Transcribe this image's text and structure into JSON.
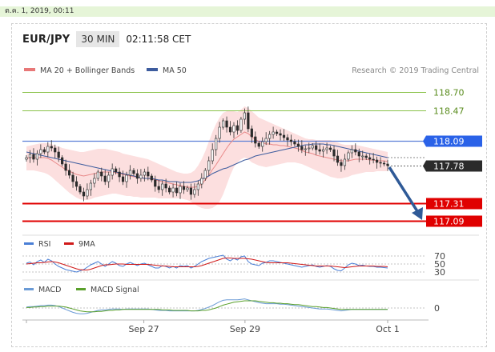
{
  "date_bar": "ต.ค. 1, 2019, 00:11",
  "header": {
    "pair": "EUR/JPY",
    "timeframe": "30 MIN",
    "clock": "02:11:58 CET"
  },
  "legend": {
    "bb_label": "MA 20 + Bollinger Bands",
    "ma50_label": "MA 50",
    "credit": "Research © 2019 Trading Central"
  },
  "colors": {
    "bb": "#e87878",
    "ma50": "#3d5c9e",
    "green": "#8ac24a",
    "red": "#e00000",
    "blue": "#2a62e8",
    "rsi": "#4a7fd6",
    "nine_ma": "#d01a1a",
    "macd": "#6b9bd6",
    "macd_signal": "#5aa02c"
  },
  "chart_data": [
    {
      "type": "line",
      "panel": "price",
      "x_labels": [
        "Sep 27",
        "Sep 29",
        "Oct 1"
      ],
      "ylim": [
        116.95,
        118.85
      ],
      "close": [
        117.88,
        117.92,
        117.86,
        117.93,
        117.98,
        117.95,
        118.02,
        118.0,
        117.95,
        117.88,
        117.8,
        117.72,
        117.66,
        117.58,
        117.52,
        117.45,
        117.4,
        117.48,
        117.56,
        117.62,
        117.7,
        117.65,
        117.58,
        117.66,
        117.74,
        117.7,
        117.64,
        117.58,
        117.66,
        117.72,
        117.68,
        117.62,
        117.66,
        117.7,
        117.65,
        117.6,
        117.52,
        117.48,
        117.55,
        117.5,
        117.45,
        117.5,
        117.44,
        117.52,
        117.48,
        117.5,
        117.42,
        117.48,
        117.55,
        117.62,
        117.72,
        117.84,
        117.98,
        118.12,
        118.26,
        118.34,
        118.26,
        118.2,
        118.28,
        118.22,
        118.36,
        118.44,
        118.24,
        118.14,
        118.06,
        118.02,
        118.08,
        118.12,
        118.17,
        118.2,
        118.18,
        118.16,
        118.13,
        118.1,
        118.08,
        118.05,
        118.02,
        117.98,
        117.99,
        118.0,
        118.03,
        117.98,
        117.96,
        117.98,
        118.0,
        117.98,
        117.9,
        117.82,
        117.78,
        117.86,
        117.94,
        117.98,
        117.95,
        117.9,
        117.9,
        117.88,
        117.86,
        117.85,
        117.82,
        117.81,
        117.8,
        117.78
      ],
      "bb_upper": [
        118.02,
        118.03,
        118.04,
        118.05,
        118.06,
        118.06,
        118.06,
        118.05,
        118.03,
        118.02,
        118.0,
        117.99,
        117.98,
        117.97,
        117.96,
        117.95,
        117.95,
        117.96,
        117.97,
        117.98,
        117.99,
        117.99,
        117.99,
        117.98,
        117.97,
        117.96,
        117.95,
        117.93,
        117.92,
        117.91,
        117.9,
        117.89,
        117.88,
        117.87,
        117.86,
        117.84,
        117.82,
        117.8,
        117.78,
        117.76,
        117.74,
        117.72,
        117.7,
        117.69,
        117.68,
        117.68,
        117.69,
        117.72,
        117.78,
        117.86,
        117.96,
        118.08,
        118.2,
        118.3,
        118.38,
        118.44,
        118.46,
        118.46,
        118.46,
        118.45,
        118.48,
        118.52,
        118.5,
        118.46,
        118.42,
        118.38,
        118.36,
        118.34,
        118.32,
        118.3,
        118.28,
        118.26,
        118.24,
        118.22,
        118.2,
        118.18,
        118.16,
        118.14,
        118.12,
        118.11,
        118.11,
        118.1,
        118.1,
        118.1,
        118.1,
        118.1,
        118.08,
        118.07,
        118.05,
        118.04,
        118.04,
        118.04,
        118.04,
        118.03,
        118.02,
        118.01,
        118.0,
        117.99,
        117.98,
        117.97,
        117.96,
        117.95
      ],
      "bb_lower": [
        117.72,
        117.72,
        117.72,
        117.71,
        117.7,
        117.69,
        117.67,
        117.64,
        117.6,
        117.56,
        117.52,
        117.48,
        117.44,
        117.41,
        117.38,
        117.36,
        117.35,
        117.35,
        117.36,
        117.38,
        117.39,
        117.4,
        117.41,
        117.42,
        117.43,
        117.43,
        117.42,
        117.41,
        117.4,
        117.4,
        117.39,
        117.39,
        117.38,
        117.38,
        117.38,
        117.38,
        117.38,
        117.37,
        117.37,
        117.37,
        117.37,
        117.37,
        117.37,
        117.37,
        117.36,
        117.35,
        117.33,
        117.3,
        117.27,
        117.25,
        117.24,
        117.24,
        117.25,
        117.28,
        117.33,
        117.42,
        117.54,
        117.66,
        117.76,
        117.82,
        117.86,
        117.88,
        117.86,
        117.82,
        117.8,
        117.78,
        117.77,
        117.76,
        117.77,
        117.78,
        117.79,
        117.8,
        117.81,
        117.82,
        117.82,
        117.82,
        117.81,
        117.8,
        117.78,
        117.76,
        117.74,
        117.72,
        117.7,
        117.68,
        117.66,
        117.64,
        117.63,
        117.62,
        117.62,
        117.63,
        117.64,
        117.66,
        117.67,
        117.68,
        117.69,
        117.7,
        117.7,
        117.7,
        117.71,
        117.71,
        117.71,
        117.71
      ],
      "ma20": [
        117.87,
        117.88,
        117.88,
        117.88,
        117.88,
        117.88,
        117.87,
        117.85,
        117.82,
        117.79,
        117.76,
        117.73,
        117.71,
        117.69,
        117.67,
        117.66,
        117.65,
        117.66,
        117.67,
        117.68,
        117.69,
        117.7,
        117.7,
        117.7,
        117.7,
        117.69,
        117.68,
        117.67,
        117.66,
        117.65,
        117.64,
        117.64,
        117.63,
        117.62,
        117.62,
        117.61,
        117.6,
        117.59,
        117.58,
        117.57,
        117.56,
        117.55,
        117.54,
        117.53,
        117.52,
        117.51,
        117.51,
        117.51,
        117.52,
        117.55,
        117.6,
        117.66,
        117.73,
        117.79,
        117.86,
        117.93,
        118.0,
        118.06,
        118.11,
        118.14,
        118.17,
        118.2,
        118.18,
        118.14,
        118.11,
        118.08,
        118.07,
        118.05,
        118.05,
        118.04,
        118.04,
        118.03,
        118.03,
        118.02,
        118.01,
        118.0,
        117.99,
        117.97,
        117.95,
        117.94,
        117.93,
        117.91,
        117.9,
        117.89,
        117.88,
        117.87,
        117.86,
        117.85,
        117.84,
        117.84,
        117.84,
        117.85,
        117.86,
        117.86,
        117.86,
        117.86,
        117.85,
        117.85,
        117.84,
        117.84,
        117.84,
        117.83
      ],
      "ma50": [
        117.95,
        117.94,
        117.93,
        117.92,
        117.91,
        117.9,
        117.89,
        117.88,
        117.87,
        117.86,
        117.85,
        117.84,
        117.83,
        117.82,
        117.81,
        117.8,
        117.79,
        117.78,
        117.77,
        117.76,
        117.75,
        117.74,
        117.73,
        117.72,
        117.71,
        117.7,
        117.69,
        117.68,
        117.67,
        117.66,
        117.65,
        117.64,
        117.63,
        117.62,
        117.62,
        117.62,
        117.61,
        117.6,
        117.6,
        117.59,
        117.58,
        117.58,
        117.58,
        117.57,
        117.57,
        117.57,
        117.57,
        117.58,
        117.59,
        117.61,
        117.63,
        117.65,
        117.68,
        117.7,
        117.72,
        117.74,
        117.75,
        117.77,
        117.79,
        117.81,
        117.83,
        117.85,
        117.86,
        117.88,
        117.9,
        117.91,
        117.92,
        117.93,
        117.94,
        117.95,
        117.96,
        117.97,
        117.98,
        117.99,
        118.0,
        118.01,
        118.02,
        118.03,
        118.04,
        118.04,
        118.05,
        118.05,
        118.05,
        118.05,
        118.04,
        118.04,
        118.03,
        118.02,
        118.01,
        118.0,
        117.99,
        117.98,
        117.97,
        117.96,
        117.95,
        117.94,
        117.93,
        117.92,
        117.91,
        117.9,
        117.89,
        117.88
      ],
      "levels": [
        {
          "value": 118.7,
          "label": "118.70",
          "kind": "green"
        },
        {
          "value": 118.47,
          "label": "118.47",
          "kind": "green"
        },
        {
          "value": 118.09,
          "label": "118.09",
          "kind": "blue"
        },
        {
          "value": 117.78,
          "label": "117.78",
          "kind": "current"
        },
        {
          "value": 117.31,
          "label": "117.31",
          "kind": "red"
        },
        {
          "value": 117.09,
          "label": "117.09",
          "kind": "red"
        }
      ],
      "forecast_arrow": {
        "from": 117.78,
        "to": 117.09
      }
    },
    {
      "type": "line",
      "panel": "rsi",
      "legend": [
        "RSI",
        "9MA"
      ],
      "levels": [
        70,
        50,
        30
      ],
      "ylim": [
        20,
        80
      ],
      "rsi": [
        52,
        55,
        48,
        56,
        60,
        54,
        62,
        58,
        50,
        44,
        40,
        36,
        34,
        32,
        30,
        33,
        36,
        42,
        48,
        52,
        56,
        50,
        44,
        50,
        56,
        52,
        46,
        44,
        50,
        54,
        50,
        46,
        50,
        52,
        48,
        44,
        40,
        40,
        46,
        44,
        40,
        44,
        40,
        46,
        44,
        46,
        40,
        44,
        50,
        56,
        60,
        64,
        66,
        68,
        70,
        72,
        62,
        58,
        64,
        60,
        68,
        70,
        56,
        50,
        48,
        46,
        52,
        54,
        58,
        58,
        56,
        54,
        52,
        50,
        48,
        46,
        44,
        42,
        44,
        46,
        48,
        44,
        42,
        44,
        46,
        44,
        38,
        34,
        33,
        40,
        48,
        52,
        50,
        46,
        47,
        45,
        44,
        44,
        42,
        42,
        41,
        40
      ],
      "nine_ma": [
        50,
        51,
        52,
        53,
        53,
        54,
        55,
        56,
        55,
        53,
        50,
        47,
        44,
        41,
        38,
        36,
        35,
        35,
        37,
        40,
        43,
        46,
        48,
        48,
        49,
        50,
        50,
        50,
        49,
        49,
        49,
        49,
        49,
        49,
        49,
        48,
        47,
        46,
        45,
        45,
        44,
        43,
        43,
        43,
        43,
        43,
        43,
        43,
        44,
        46,
        49,
        52,
        55,
        58,
        61,
        64,
        65,
        65,
        64,
        64,
        64,
        64,
        63,
        62,
        60,
        58,
        56,
        54,
        53,
        53,
        53,
        53,
        53,
        53,
        52,
        51,
        50,
        49,
        48,
        47,
        46,
        45,
        45,
        45,
        45,
        45,
        44,
        43,
        42,
        41,
        42,
        43,
        44,
        45,
        45,
        45,
        45,
        45,
        44,
        44,
        44,
        43
      ]
    },
    {
      "type": "line",
      "panel": "macd",
      "legend": [
        "MACD",
        "MACD Signal"
      ],
      "zero_label": "0",
      "ylim": [
        -0.25,
        0.25
      ],
      "macd": [
        0.02,
        0.03,
        0.03,
        0.04,
        0.05,
        0.05,
        0.06,
        0.06,
        0.05,
        0.03,
        0.0,
        -0.03,
        -0.06,
        -0.09,
        -0.11,
        -0.12,
        -0.12,
        -0.11,
        -0.09,
        -0.07,
        -0.05,
        -0.04,
        -0.04,
        -0.03,
        -0.02,
        -0.02,
        -0.02,
        -0.03,
        -0.02,
        -0.02,
        -0.02,
        -0.02,
        -0.02,
        -0.02,
        -0.02,
        -0.03,
        -0.04,
        -0.05,
        -0.05,
        -0.05,
        -0.06,
        -0.06,
        -0.06,
        -0.06,
        -0.06,
        -0.06,
        -0.06,
        -0.06,
        -0.05,
        -0.03,
        -0.01,
        0.02,
        0.05,
        0.09,
        0.13,
        0.16,
        0.17,
        0.17,
        0.17,
        0.17,
        0.18,
        0.19,
        0.17,
        0.15,
        0.13,
        0.11,
        0.1,
        0.09,
        0.09,
        0.09,
        0.09,
        0.08,
        0.08,
        0.07,
        0.06,
        0.05,
        0.04,
        0.03,
        0.02,
        0.01,
        0.0,
        -0.01,
        -0.02,
        -0.02,
        -0.02,
        -0.03,
        -0.04,
        -0.05,
        -0.06,
        -0.05,
        -0.04,
        -0.03,
        -0.03,
        -0.03,
        -0.03,
        -0.03,
        -0.03,
        -0.03,
        -0.03,
        -0.03,
        -0.03,
        -0.03
      ],
      "signal": [
        0.01,
        0.01,
        0.02,
        0.02,
        0.03,
        0.03,
        0.04,
        0.04,
        0.04,
        0.04,
        0.03,
        0.02,
        0.0,
        -0.02,
        -0.04,
        -0.06,
        -0.07,
        -0.08,
        -0.08,
        -0.08,
        -0.07,
        -0.07,
        -0.06,
        -0.05,
        -0.05,
        -0.04,
        -0.04,
        -0.03,
        -0.03,
        -0.03,
        -0.03,
        -0.03,
        -0.03,
        -0.03,
        -0.03,
        -0.03,
        -0.03,
        -0.03,
        -0.04,
        -0.04,
        -0.04,
        -0.05,
        -0.05,
        -0.05,
        -0.05,
        -0.05,
        -0.06,
        -0.06,
        -0.06,
        -0.05,
        -0.05,
        -0.04,
        -0.02,
        0.0,
        0.03,
        0.06,
        0.08,
        0.1,
        0.12,
        0.13,
        0.14,
        0.15,
        0.15,
        0.15,
        0.15,
        0.14,
        0.13,
        0.12,
        0.11,
        0.11,
        0.1,
        0.1,
        0.09,
        0.09,
        0.08,
        0.07,
        0.07,
        0.06,
        0.05,
        0.04,
        0.03,
        0.03,
        0.02,
        0.01,
        0.01,
        0.0,
        -0.01,
        -0.02,
        -0.03,
        -0.03,
        -0.03,
        -0.03,
        -0.03,
        -0.03,
        -0.03,
        -0.03,
        -0.03,
        -0.03,
        -0.03,
        -0.03,
        -0.03,
        -0.03
      ]
    }
  ]
}
